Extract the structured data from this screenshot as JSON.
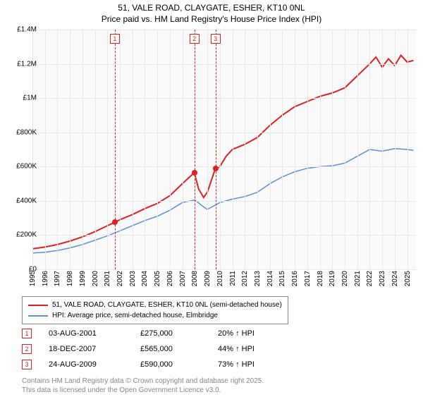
{
  "title_line1": "51, VALE ROAD, CLAYGATE, ESHER, KT10 0NL",
  "title_line2": "Price paid vs. HM Land Registry's House Price Index (HPI)",
  "chart": {
    "type": "line",
    "background_color": "#fafafa",
    "grid_color": "#e8e8e8",
    "x_min": 1995,
    "x_max": 2025.7,
    "x_ticks": [
      1995,
      1996,
      1997,
      1998,
      1999,
      2000,
      2001,
      2002,
      2003,
      2004,
      2005,
      2006,
      2007,
      2008,
      2009,
      2010,
      2011,
      2012,
      2013,
      2014,
      2015,
      2016,
      2017,
      2018,
      2019,
      2020,
      2021,
      2022,
      2023,
      2024,
      2025
    ],
    "y_min": 0,
    "y_max": 1400000,
    "y_ticks": [
      {
        "v": 0,
        "label": "£0"
      },
      {
        "v": 200000,
        "label": "£200K"
      },
      {
        "v": 400000,
        "label": "£400K"
      },
      {
        "v": 600000,
        "label": "£600K"
      },
      {
        "v": 800000,
        "label": "£800K"
      },
      {
        "v": 1000000,
        "label": "£1M"
      },
      {
        "v": 1200000,
        "label": "£1.2M"
      },
      {
        "v": 1400000,
        "label": "£1.4M"
      }
    ],
    "series": [
      {
        "name": "price_paid",
        "color": "#e02020",
        "line_width": 2,
        "points": [
          [
            1995,
            120000
          ],
          [
            1996,
            130000
          ],
          [
            1997,
            145000
          ],
          [
            1998,
            165000
          ],
          [
            1999,
            190000
          ],
          [
            2000,
            220000
          ],
          [
            2001,
            255000
          ],
          [
            2001.6,
            275000
          ],
          [
            2002,
            290000
          ],
          [
            2003,
            320000
          ],
          [
            2004,
            355000
          ],
          [
            2005,
            385000
          ],
          [
            2006,
            430000
          ],
          [
            2007,
            500000
          ],
          [
            2007.96,
            565000
          ],
          [
            2008.3,
            470000
          ],
          [
            2008.7,
            420000
          ],
          [
            2009,
            450000
          ],
          [
            2009.65,
            590000
          ],
          [
            2010,
            600000
          ],
          [
            2010.5,
            660000
          ],
          [
            2011,
            700000
          ],
          [
            2012,
            730000
          ],
          [
            2013,
            770000
          ],
          [
            2014,
            840000
          ],
          [
            2015,
            900000
          ],
          [
            2016,
            950000
          ],
          [
            2017,
            980000
          ],
          [
            2018,
            1010000
          ],
          [
            2019,
            1030000
          ],
          [
            2020,
            1060000
          ],
          [
            2021,
            1130000
          ],
          [
            2022,
            1200000
          ],
          [
            2022.5,
            1240000
          ],
          [
            2023,
            1180000
          ],
          [
            2023.5,
            1230000
          ],
          [
            2024,
            1190000
          ],
          [
            2024.5,
            1250000
          ],
          [
            2025,
            1210000
          ],
          [
            2025.5,
            1220000
          ]
        ]
      },
      {
        "name": "hpi",
        "color": "#5b8fd6",
        "line_width": 1.5,
        "points": [
          [
            1995,
            95000
          ],
          [
            1996,
            100000
          ],
          [
            1997,
            110000
          ],
          [
            1998,
            125000
          ],
          [
            1999,
            145000
          ],
          [
            2000,
            170000
          ],
          [
            2001,
            195000
          ],
          [
            2002,
            225000
          ],
          [
            2003,
            255000
          ],
          [
            2004,
            285000
          ],
          [
            2005,
            310000
          ],
          [
            2006,
            345000
          ],
          [
            2007,
            390000
          ],
          [
            2008,
            405000
          ],
          [
            2008.6,
            370000
          ],
          [
            2009,
            350000
          ],
          [
            2010,
            390000
          ],
          [
            2011,
            410000
          ],
          [
            2012,
            425000
          ],
          [
            2013,
            450000
          ],
          [
            2014,
            500000
          ],
          [
            2015,
            540000
          ],
          [
            2016,
            570000
          ],
          [
            2017,
            590000
          ],
          [
            2018,
            600000
          ],
          [
            2019,
            605000
          ],
          [
            2020,
            620000
          ],
          [
            2021,
            660000
          ],
          [
            2022,
            700000
          ],
          [
            2023,
            690000
          ],
          [
            2024,
            705000
          ],
          [
            2025,
            700000
          ],
          [
            2025.5,
            695000
          ]
        ]
      }
    ],
    "event_lines": [
      {
        "num": "1",
        "x": 2001.6,
        "y": 275000
      },
      {
        "num": "2",
        "x": 2007.96,
        "y": 565000
      },
      {
        "num": "3",
        "x": 2009.65,
        "y": 590000
      }
    ],
    "dot_color": "#e02020"
  },
  "legend": {
    "items": [
      {
        "color": "#e02020",
        "label": "51, VALE ROAD, CLAYGATE, ESHER, KT10 0NL (semi-detached house)"
      },
      {
        "color": "#5b8fd6",
        "label": "HPI: Average price, semi-detached house, Elmbridge"
      }
    ]
  },
  "events": [
    {
      "num": "1",
      "date": "03-AUG-2001",
      "price": "£275,000",
      "pct": "20% ↑ HPI"
    },
    {
      "num": "2",
      "date": "18-DEC-2007",
      "price": "£565,000",
      "pct": "44% ↑ HPI"
    },
    {
      "num": "3",
      "date": "24-AUG-2009",
      "price": "£590,000",
      "pct": "73% ↑ HPI"
    }
  ],
  "footer_line1": "Contains HM Land Registry data © Crown copyright and database right 2025.",
  "footer_line2": "This data is licensed under the Open Government Licence v3.0."
}
